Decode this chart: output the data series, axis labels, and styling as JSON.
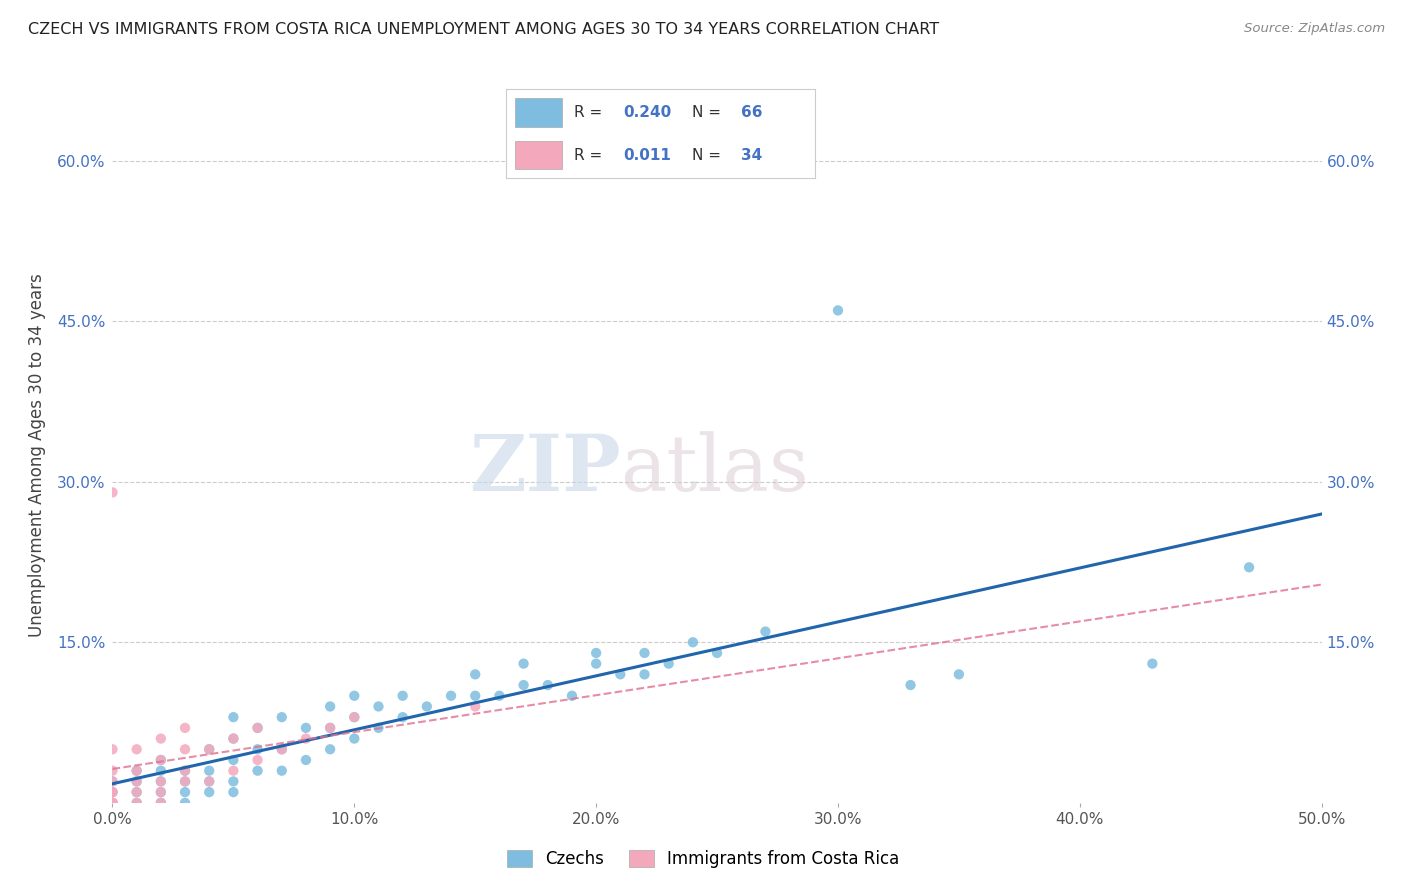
{
  "title": "CZECH VS IMMIGRANTS FROM COSTA RICA UNEMPLOYMENT AMONG AGES 30 TO 34 YEARS CORRELATION CHART",
  "source": "Source: ZipAtlas.com",
  "ylabel": "Unemployment Among Ages 30 to 34 years",
  "xlim": [
    0.0,
    0.5
  ],
  "ylim": [
    0.0,
    0.65
  ],
  "xticks": [
    0.0,
    0.1,
    0.2,
    0.3,
    0.4,
    0.5
  ],
  "xtick_labels": [
    "0.0%",
    "10.0%",
    "20.0%",
    "30.0%",
    "40.0%",
    "50.0%"
  ],
  "yticks": [
    0.0,
    0.15,
    0.3,
    0.45,
    0.6
  ],
  "ytick_labels": [
    "",
    "15.0%",
    "30.0%",
    "45.0%",
    "60.0%"
  ],
  "czech_R": "0.240",
  "czech_N": "66",
  "costa_rica_R": "0.011",
  "costa_rica_N": "34",
  "czech_color": "#7fbde0",
  "costa_rica_color": "#f4a8bc",
  "czech_line_color": "#2166ac",
  "costa_rica_line_color": "#e07090",
  "watermark_zip": "ZIP",
  "watermark_atlas": "atlas",
  "legend_labels": [
    "Czechs",
    "Immigrants from Costa Rica"
  ],
  "czech_scatter_x": [
    0.0,
    0.0,
    0.0,
    0.01,
    0.01,
    0.01,
    0.01,
    0.02,
    0.02,
    0.02,
    0.02,
    0.02,
    0.03,
    0.03,
    0.03,
    0.03,
    0.04,
    0.04,
    0.04,
    0.04,
    0.05,
    0.05,
    0.05,
    0.05,
    0.05,
    0.06,
    0.06,
    0.06,
    0.07,
    0.07,
    0.07,
    0.08,
    0.08,
    0.09,
    0.09,
    0.09,
    0.1,
    0.1,
    0.1,
    0.11,
    0.11,
    0.12,
    0.12,
    0.13,
    0.14,
    0.15,
    0.15,
    0.16,
    0.17,
    0.17,
    0.18,
    0.19,
    0.2,
    0.2,
    0.21,
    0.22,
    0.22,
    0.23,
    0.24,
    0.25,
    0.27,
    0.3,
    0.33,
    0.35,
    0.43,
    0.47
  ],
  "czech_scatter_y": [
    0.0,
    0.01,
    0.02,
    0.0,
    0.01,
    0.02,
    0.03,
    0.0,
    0.01,
    0.02,
    0.03,
    0.04,
    0.0,
    0.01,
    0.02,
    0.03,
    0.01,
    0.02,
    0.03,
    0.05,
    0.01,
    0.02,
    0.04,
    0.06,
    0.08,
    0.03,
    0.05,
    0.07,
    0.03,
    0.05,
    0.08,
    0.04,
    0.07,
    0.05,
    0.07,
    0.09,
    0.06,
    0.08,
    0.1,
    0.07,
    0.09,
    0.08,
    0.1,
    0.09,
    0.1,
    0.1,
    0.12,
    0.1,
    0.11,
    0.13,
    0.11,
    0.1,
    0.13,
    0.14,
    0.12,
    0.12,
    0.14,
    0.13,
    0.15,
    0.14,
    0.16,
    0.46,
    0.11,
    0.12,
    0.13,
    0.22
  ],
  "costa_rica_scatter_x": [
    0.0,
    0.0,
    0.0,
    0.0,
    0.0,
    0.0,
    0.0,
    0.0,
    0.0,
    0.01,
    0.01,
    0.01,
    0.01,
    0.01,
    0.02,
    0.02,
    0.02,
    0.02,
    0.02,
    0.03,
    0.03,
    0.03,
    0.03,
    0.04,
    0.04,
    0.05,
    0.05,
    0.06,
    0.06,
    0.07,
    0.08,
    0.09,
    0.1,
    0.15
  ],
  "costa_rica_scatter_y": [
    0.0,
    0.0,
    0.0,
    0.01,
    0.01,
    0.02,
    0.03,
    0.05,
    0.29,
    0.0,
    0.01,
    0.02,
    0.03,
    0.05,
    0.0,
    0.01,
    0.02,
    0.04,
    0.06,
    0.02,
    0.03,
    0.05,
    0.07,
    0.02,
    0.05,
    0.03,
    0.06,
    0.04,
    0.07,
    0.05,
    0.06,
    0.07,
    0.08,
    0.09
  ]
}
